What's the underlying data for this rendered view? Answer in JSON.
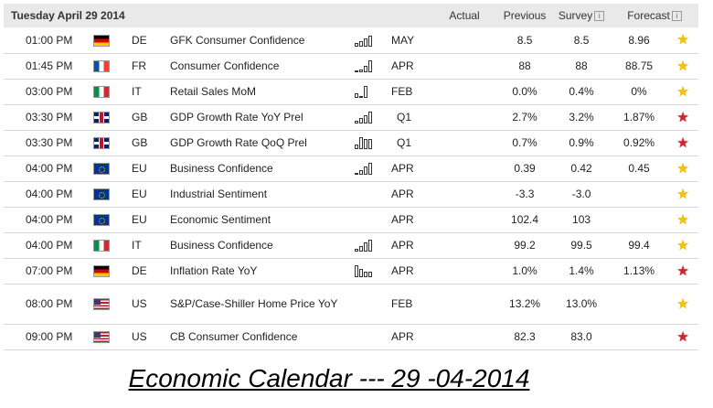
{
  "header": {
    "date": "Tuesday April 29 2014",
    "actual": "Actual",
    "previous": "Previous",
    "survey": "Survey",
    "forecast": "Forecast"
  },
  "rows": [
    {
      "time": "01:00 PM",
      "country": "DE",
      "flag": "de",
      "event": "GFK Consumer Confidence",
      "spark": [
        3,
        5,
        7,
        9
      ],
      "period": "MAY",
      "actual": "",
      "previous": "8.5",
      "survey": "8.5",
      "forecast": "8.96",
      "importance": "yellow-star"
    },
    {
      "time": "01:45 PM",
      "country": "FR",
      "flag": "fr",
      "event": "Consumer Confidence",
      "spark": [
        2,
        3,
        6,
        10
      ],
      "period": "APR",
      "actual": "",
      "previous": "88",
      "survey": "88",
      "forecast": "88.75",
      "importance": "yellow-star"
    },
    {
      "time": "03:00 PM",
      "country": "IT",
      "flag": "it",
      "event": "Retail Sales MoM",
      "spark": [
        4,
        0,
        10
      ],
      "period": "FEB",
      "actual": "",
      "previous": "0.0%",
      "survey": "0.4%",
      "forecast": "0%",
      "importance": "yellow-star"
    },
    {
      "time": "03:30 PM",
      "country": "GB",
      "flag": "gb",
      "event": "GDP Growth Rate YoY Prel",
      "spark": [
        3,
        5,
        7,
        10
      ],
      "period": "Q1",
      "actual": "",
      "previous": "2.7%",
      "survey": "3.2%",
      "forecast": "1.87%",
      "importance": "red-star"
    },
    {
      "time": "03:30 PM",
      "country": "GB",
      "flag": "gb",
      "event": "GDP Growth Rate QoQ Prel",
      "spark": [
        4,
        10,
        9,
        9
      ],
      "period": "Q1",
      "actual": "",
      "previous": "0.7%",
      "survey": "0.9%",
      "forecast": "0.92%",
      "importance": "red-star"
    },
    {
      "time": "04:00 PM",
      "country": "EU",
      "flag": "eu",
      "event": "Business Confidence",
      "spark": [
        2,
        4,
        7,
        10
      ],
      "period": "APR",
      "actual": "",
      "previous": "0.39",
      "survey": "0.42",
      "forecast": "0.45",
      "importance": "yellow-star"
    },
    {
      "time": "04:00 PM",
      "country": "EU",
      "flag": "eu",
      "event": "Industrial Sentiment",
      "spark": [],
      "period": "APR",
      "actual": "",
      "previous": "-3.3",
      "survey": "-3.0",
      "forecast": "",
      "importance": "yellow-star"
    },
    {
      "time": "04:00 PM",
      "country": "EU",
      "flag": "eu",
      "event": "Economic Sentiment",
      "spark": [],
      "period": "APR",
      "actual": "",
      "previous": "102.4",
      "survey": "103",
      "forecast": "",
      "importance": "yellow-star"
    },
    {
      "time": "04:00 PM",
      "country": "IT",
      "flag": "it",
      "event": "Business Confidence",
      "spark": [
        3,
        5,
        8,
        10
      ],
      "period": "APR",
      "actual": "",
      "previous": "99.2",
      "survey": "99.5",
      "forecast": "99.4",
      "importance": "yellow-star"
    },
    {
      "time": "07:00 PM",
      "country": "DE",
      "flag": "de",
      "event": "Inflation Rate YoY",
      "spark": [
        10,
        7,
        5,
        5
      ],
      "period": "APR",
      "actual": "",
      "previous": "1.0%",
      "survey": "1.4%",
      "forecast": "1.13%",
      "importance": "red-star"
    },
    {
      "time": "08:00 PM",
      "country": "US",
      "flag": "us",
      "event": "S&P/Case-Shiller Home Price YoY",
      "spark": [],
      "period": "FEB",
      "actual": "",
      "previous": "13.2%",
      "survey": "13.0%",
      "forecast": "",
      "importance": "yellow-star",
      "tall": true
    },
    {
      "time": "09:00 PM",
      "country": "US",
      "flag": "us",
      "event": "CB Consumer Confidence",
      "spark": [],
      "period": "APR",
      "actual": "",
      "previous": "82.3",
      "survey": "83.0",
      "forecast": "",
      "importance": "red-star"
    }
  ],
  "caption": "Economic Calendar --- 29 -04-2014",
  "colors": {
    "header_bg": "#e9e9e9",
    "star_yellow": "#f5c400",
    "star_red": "#d8232a"
  }
}
